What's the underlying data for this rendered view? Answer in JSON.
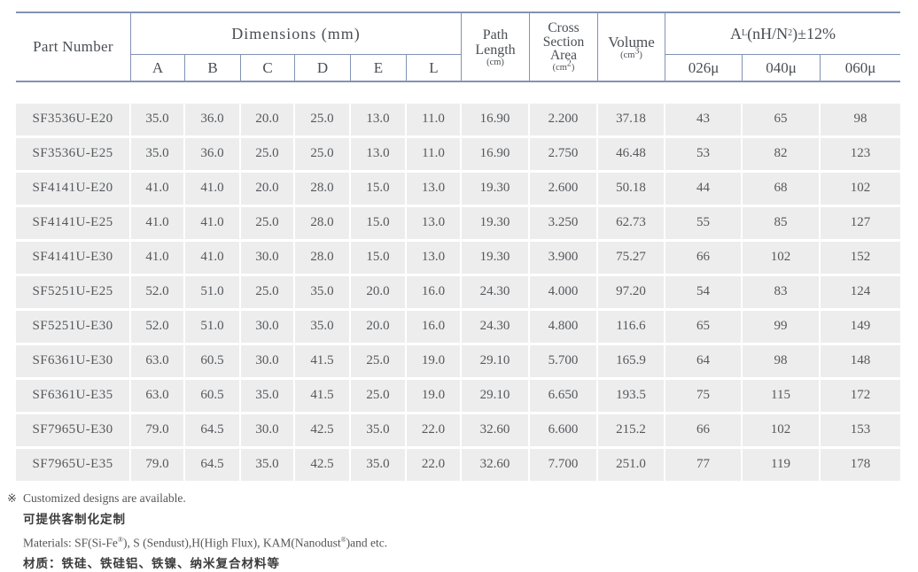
{
  "colors": {
    "line": "#8292b4",
    "row_bg": "#ededed",
    "text": "#55585c"
  },
  "table": {
    "header": {
      "part_number": "Part Number",
      "dimensions": "Dimensions (mm)",
      "dim_cols": [
        "A",
        "B",
        "C",
        "D",
        "E",
        "L"
      ],
      "path": {
        "line1": "Path",
        "line2": "Length",
        "unit": "(cm)"
      },
      "cross": {
        "line1": "Cross",
        "line2": "Section",
        "line3": "Area",
        "unit_pre": "(cm",
        "unit_sup": "2",
        "unit_post": ")"
      },
      "volume": {
        "line1": "Volume",
        "unit_pre": "(cm",
        "unit_sup": "3",
        "unit_post": ")"
      },
      "al": {
        "base": "A",
        "sub": "L",
        "mid": "(nH/N",
        "sup": "2",
        "tail": ")±12%"
      },
      "al_cols": [
        "026μ",
        "040μ",
        "060μ"
      ]
    },
    "rows": [
      [
        "SF3536U-E20",
        "35.0",
        "36.0",
        "20.0",
        "25.0",
        "13.0",
        "11.0",
        "16.90",
        "2.200",
        "37.18",
        "43",
        "65",
        "98"
      ],
      [
        "SF3536U-E25",
        "35.0",
        "36.0",
        "25.0",
        "25.0",
        "13.0",
        "11.0",
        "16.90",
        "2.750",
        "46.48",
        "53",
        "82",
        "123"
      ],
      [
        "SF4141U-E20",
        "41.0",
        "41.0",
        "20.0",
        "28.0",
        "15.0",
        "13.0",
        "19.30",
        "2.600",
        "50.18",
        "44",
        "68",
        "102"
      ],
      [
        "SF4141U-E25",
        "41.0",
        "41.0",
        "25.0",
        "28.0",
        "15.0",
        "13.0",
        "19.30",
        "3.250",
        "62.73",
        "55",
        "85",
        "127"
      ],
      [
        "SF4141U-E30",
        "41.0",
        "41.0",
        "30.0",
        "28.0",
        "15.0",
        "13.0",
        "19.30",
        "3.900",
        "75.27",
        "66",
        "102",
        "152"
      ],
      [
        "SF5251U-E25",
        "52.0",
        "51.0",
        "25.0",
        "35.0",
        "20.0",
        "16.0",
        "24.30",
        "4.000",
        "97.20",
        "54",
        "83",
        "124"
      ],
      [
        "SF5251U-E30",
        "52.0",
        "51.0",
        "30.0",
        "35.0",
        "20.0",
        "16.0",
        "24.30",
        "4.800",
        "116.6",
        "65",
        "99",
        "149"
      ],
      [
        "SF6361U-E30",
        "63.0",
        "60.5",
        "30.0",
        "41.5",
        "25.0",
        "19.0",
        "29.10",
        "5.700",
        "165.9",
        "64",
        "98",
        "148"
      ],
      [
        "SF6361U-E35",
        "63.0",
        "60.5",
        "35.0",
        "41.5",
        "25.0",
        "19.0",
        "29.10",
        "6.650",
        "193.5",
        "75",
        "115",
        "172"
      ],
      [
        "SF7965U-E30",
        "79.0",
        "64.5",
        "30.0",
        "42.5",
        "35.0",
        "22.0",
        "32.60",
        "6.600",
        "215.2",
        "66",
        "102",
        "153"
      ],
      [
        "SF7965U-E35",
        "79.0",
        "64.5",
        "35.0",
        "42.5",
        "35.0",
        "22.0",
        "32.60",
        "7.700",
        "251.0",
        "77",
        "119",
        "178"
      ]
    ],
    "cell_names": [
      "cell-part-number",
      "cell-dim-a",
      "cell-dim-b",
      "cell-dim-c",
      "cell-dim-d",
      "cell-dim-e",
      "cell-dim-l",
      "cell-path-length",
      "cell-cross-section",
      "cell-volume",
      "cell-al-026u",
      "cell-al-040u",
      "cell-al-060u"
    ]
  },
  "footer": {
    "note_mark": "※",
    "note_en": "Customized designs are available.",
    "note_zh": "可提供客制化定制",
    "materials": {
      "p1": "Materials: SF(Si-Fe",
      "r1": "®",
      "p2": "), S (Sendust),H(High Flux), KAM(Nanodust",
      "r2": "®",
      "p3": ")and etc."
    },
    "materials_zh": "材质：铁硅、铁硅铝、铁镍、纳米复合材料等"
  }
}
